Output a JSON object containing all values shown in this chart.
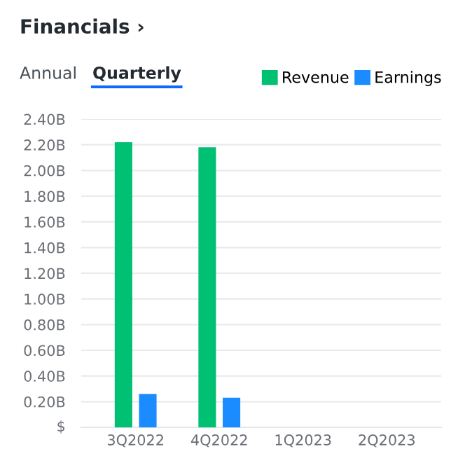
{
  "chart_data": {
    "type": "bar",
    "title": "Financials ›",
    "annotations": [
      "Annual",
      "Quarterly"
    ],
    "categories": [
      "3Q2022",
      "4Q2022",
      "1Q2023",
      "2Q2023"
    ],
    "series": [
      {
        "name": "Revenue",
        "color": "#00c073",
        "values": [
          2.22,
          2.18,
          null,
          null
        ]
      },
      {
        "name": "Earnings",
        "color": "#1a8cff",
        "values": [
          0.26,
          0.23,
          null,
          null
        ]
      }
    ],
    "ylim": [
      0,
      2.4
    ],
    "yticks": [
      {
        "value": 0,
        "label": "$"
      },
      {
        "value": 0.2,
        "label": "0.20B"
      },
      {
        "value": 0.4,
        "label": "0.40B"
      },
      {
        "value": 0.6,
        "label": "0.60B"
      },
      {
        "value": 0.8,
        "label": "0.80B"
      },
      {
        "value": 1.0,
        "label": "1.00B"
      },
      {
        "value": 1.2,
        "label": "1.20B"
      },
      {
        "value": 1.4,
        "label": "1.40B"
      },
      {
        "value": 1.6,
        "label": "1.60B"
      },
      {
        "value": 1.8,
        "label": "1.80B"
      },
      {
        "value": 2.0,
        "label": "2.00B"
      },
      {
        "value": 2.2,
        "label": "2.20B"
      },
      {
        "value": 2.4,
        "label": "2.40B"
      }
    ],
    "grid": "y",
    "legend": "top right"
  }
}
